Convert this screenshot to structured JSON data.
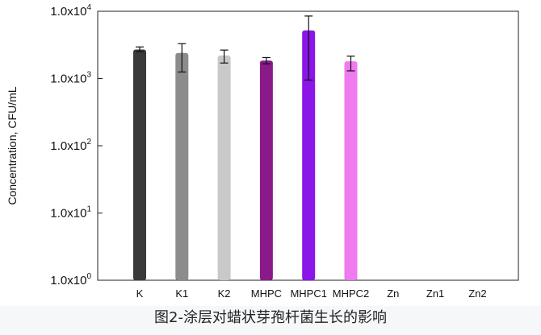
{
  "chart_data": {
    "type": "bar",
    "ylabel": "Concentration, CFU/mL",
    "yscale": "log",
    "ylim": [
      1,
      10000
    ],
    "yticks": [
      {
        "base": "1.0x10",
        "exp": "0"
      },
      {
        "base": "1.0x10",
        "exp": "1"
      },
      {
        "base": "1.0x10",
        "exp": "2"
      },
      {
        "base": "1.0x10",
        "exp": "3"
      },
      {
        "base": "1.0x10",
        "exp": "4"
      }
    ],
    "categories": [
      "K",
      "K1",
      "K2",
      "MHPC",
      "MHPC1",
      "MHPC2",
      "Zn",
      "Zn1",
      "Zn2"
    ],
    "values": [
      2700,
      2400,
      2200,
      1850,
      5200,
      1800,
      null,
      null,
      null
    ],
    "error_low": [
      2500,
      1250,
      1700,
      1650,
      950,
      1300,
      null,
      null,
      null
    ],
    "error_high": [
      2950,
      3300,
      2650,
      2050,
      8500,
      2150,
      null,
      null,
      null
    ],
    "colors": [
      "#3a3a3a",
      "#8c8c8c",
      "#c9c9c9",
      "#8a1a8a",
      "#8a16e8",
      "#f07af0",
      "",
      "",
      ""
    ],
    "grid": false,
    "legend": "none"
  },
  "caption": "图2-涂层对蜡状芽孢杆菌生长的影响"
}
